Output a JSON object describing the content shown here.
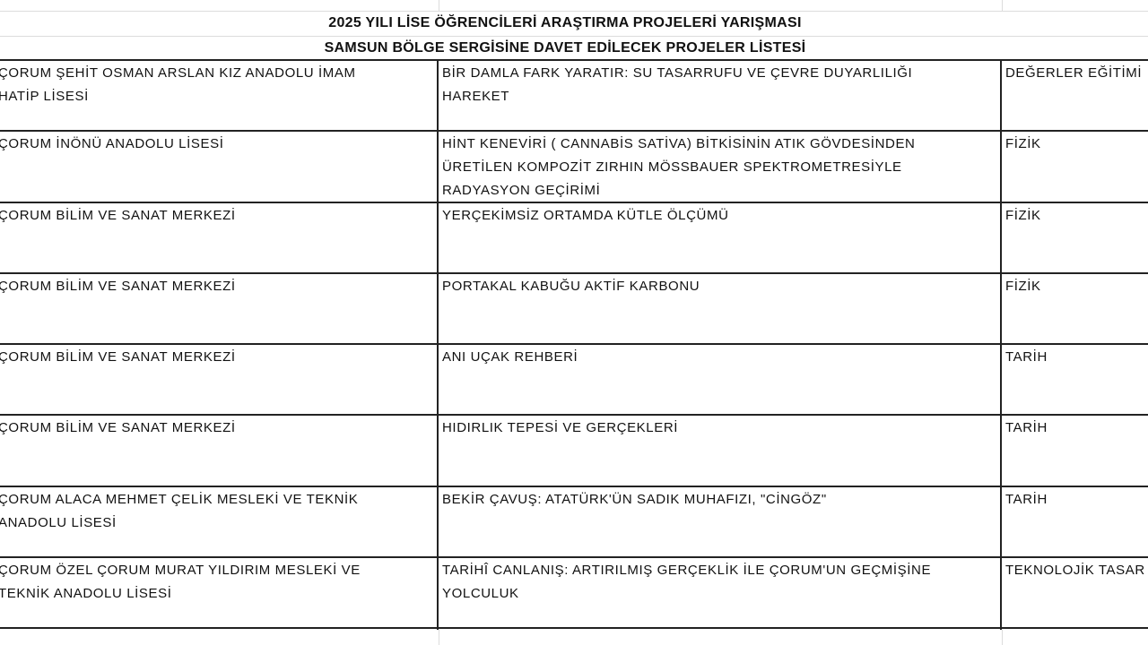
{
  "header": {
    "title": "2025 YILI LİSE ÖĞRENCİLERİ ARAŞTIRMA PROJELERİ YARIŞMASI",
    "subtitle": "SAMSUN BÖLGE SERGİSİNE DAVET EDİLECEK PROJELER LİSTESİ"
  },
  "table": {
    "rows": [
      [
        [
          "ÇORUM ŞEHİT OSMAN ARSLAN KIZ ANADOLU İMAM",
          "HATİP LİSESİ"
        ],
        [
          "BİR DAMLA FARK YARATIR: SU TASARRUFU VE ÇEVRE DUYARLILIĞI",
          "HAREKET"
        ],
        [
          "DEĞERLER EĞİTİMİ"
        ]
      ],
      [
        [
          "ÇORUM İNÖNÜ ANADOLU LİSESİ"
        ],
        [
          "HİNT KENEVİRİ ( CANNABİS SATİVA) BİTKİSİNİN ATIK GÖVDESİNDEN",
          "ÜRETİLEN KOMPOZİT ZIRHIN MÖSSBAUER SPEKTROMETRESİYLE",
          "RADYASYON GEÇİRİMİ"
        ],
        [
          "FİZİK"
        ]
      ],
      [
        [
          "ÇORUM BİLİM VE SANAT MERKEZİ"
        ],
        [
          "YERÇEKİMSİZ ORTAMDA KÜTLE ÖLÇÜMÜ"
        ],
        [
          "FİZİK"
        ]
      ],
      [
        [
          "ÇORUM BİLİM VE SANAT MERKEZİ"
        ],
        [
          "PORTAKAL KABUĞU AKTİF KARBONU"
        ],
        [
          "FİZİK"
        ]
      ],
      [
        [
          "ÇORUM BİLİM VE SANAT MERKEZİ"
        ],
        [
          "ANI UÇAK REHBERİ"
        ],
        [
          "TARİH"
        ]
      ],
      [
        [
          "ÇORUM BİLİM VE SANAT MERKEZİ"
        ],
        [
          "HIDIRLIK TEPESİ VE GERÇEKLERİ"
        ],
        [
          "TARİH"
        ]
      ],
      [
        [
          "ÇORUM ALACA MEHMET ÇELİK MESLEKİ VE TEKNİK",
          "ANADOLU LİSESİ"
        ],
        [
          "BEKİR ÇAVUŞ: ATATÜRK'ÜN SADIK MUHAFIZI, \"CİNGÖZ\""
        ],
        [
          "TARİH"
        ]
      ],
      [
        [
          "ÇORUM ÖZEL ÇORUM MURAT YILDIRIM MESLEKİ VE",
          "TEKNİK ANADOLU LİSESİ"
        ],
        [
          "TARİHÎ CANLANIŞ: ARTIRILMIŞ GERÇEKLİK İLE ÇORUM'UN GEÇMİŞİNE",
          "YOLCULUK"
        ],
        [
          "TEKNOLOJİK TASAR"
        ]
      ]
    ]
  }
}
